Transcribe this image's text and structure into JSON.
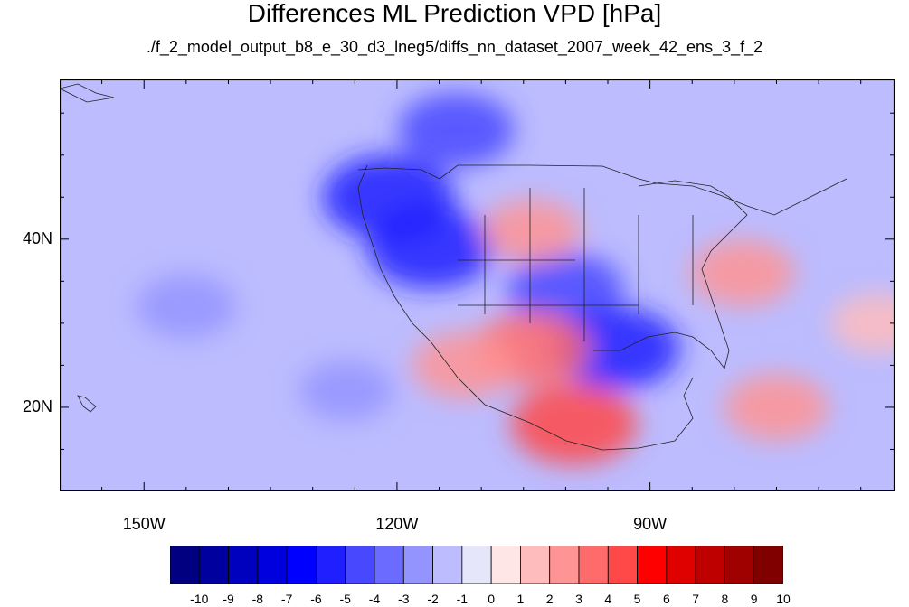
{
  "title": "Differences ML Prediction VPD [hPa]",
  "subtitle": "./f_2_model_output_b8_e_30_d3_lneg5/diffs_nn_dataset_2007_week_42_ens_3_f_2",
  "map": {
    "lon_range": [
      -160,
      -61
    ],
    "lat_range": [
      10,
      59
    ],
    "lat_ticks": [
      {
        "value": 40,
        "label": "40N"
      },
      {
        "value": 20,
        "label": "20N"
      }
    ],
    "lon_ticks": [
      {
        "value": -150,
        "label": "150W"
      },
      {
        "value": -120,
        "label": "120W"
      },
      {
        "value": -90,
        "label": "90W"
      }
    ],
    "background_value": -1.5,
    "features": [
      {
        "region": "Canada prairies / boreal",
        "lon": -113,
        "lat": 53,
        "value": -4
      },
      {
        "region": "Pacific Northwest",
        "lon": -121,
        "lat": 45,
        "value": -5.5
      },
      {
        "region": "Great Basin",
        "lon": -116,
        "lat": 39,
        "value": -5
      },
      {
        "region": "Southern Plains",
        "lon": -100,
        "lat": 34,
        "value": -4
      },
      {
        "region": "Gulf of Mexico",
        "lon": -94,
        "lat": 27,
        "value": -5
      },
      {
        "region": "Central Plains",
        "lon": -104,
        "lat": 41,
        "value": 2.5
      },
      {
        "region": "Northern Mexico",
        "lon": -104,
        "lat": 27,
        "value": 4
      },
      {
        "region": "Southern Mexico",
        "lon": -99,
        "lat": 18,
        "value": 5
      },
      {
        "region": "Baja California coast",
        "lon": -112,
        "lat": 25,
        "value": 3
      },
      {
        "region": "Carolinas",
        "lon": -79,
        "lat": 36,
        "value": 3
      },
      {
        "region": "Caribbean",
        "lon": -75,
        "lat": 20,
        "value": 3
      },
      {
        "region": "Western Atlantic",
        "lon": -63,
        "lat": 30,
        "value": 2
      },
      {
        "region": "Central Pacific",
        "lon": -145,
        "lat": 32,
        "value": -2.5
      },
      {
        "region": "East Pacific",
        "lon": -126,
        "lat": 22,
        "value": -2
      }
    ]
  },
  "colorbar": {
    "labels": [
      "-10",
      "-9",
      "-8",
      "-7",
      "-6",
      "-5",
      "-4",
      "-3",
      "-2",
      "-1",
      "0",
      "1",
      "2",
      "3",
      "4",
      "5",
      "6",
      "7",
      "8",
      "9",
      "10"
    ],
    "colors": [
      "#000080",
      "#00009f",
      "#0000bf",
      "#0000df",
      "#0000ff",
      "#1f1fff",
      "#4848ff",
      "#6b6bff",
      "#9494ff",
      "#bcbcff",
      "#e6e6fa",
      "#ffe6e6",
      "#ffbcbc",
      "#ff9494",
      "#ff6b6b",
      "#ff4848",
      "#ff0000",
      "#df0000",
      "#bf0000",
      "#9f0000",
      "#800000"
    ]
  }
}
